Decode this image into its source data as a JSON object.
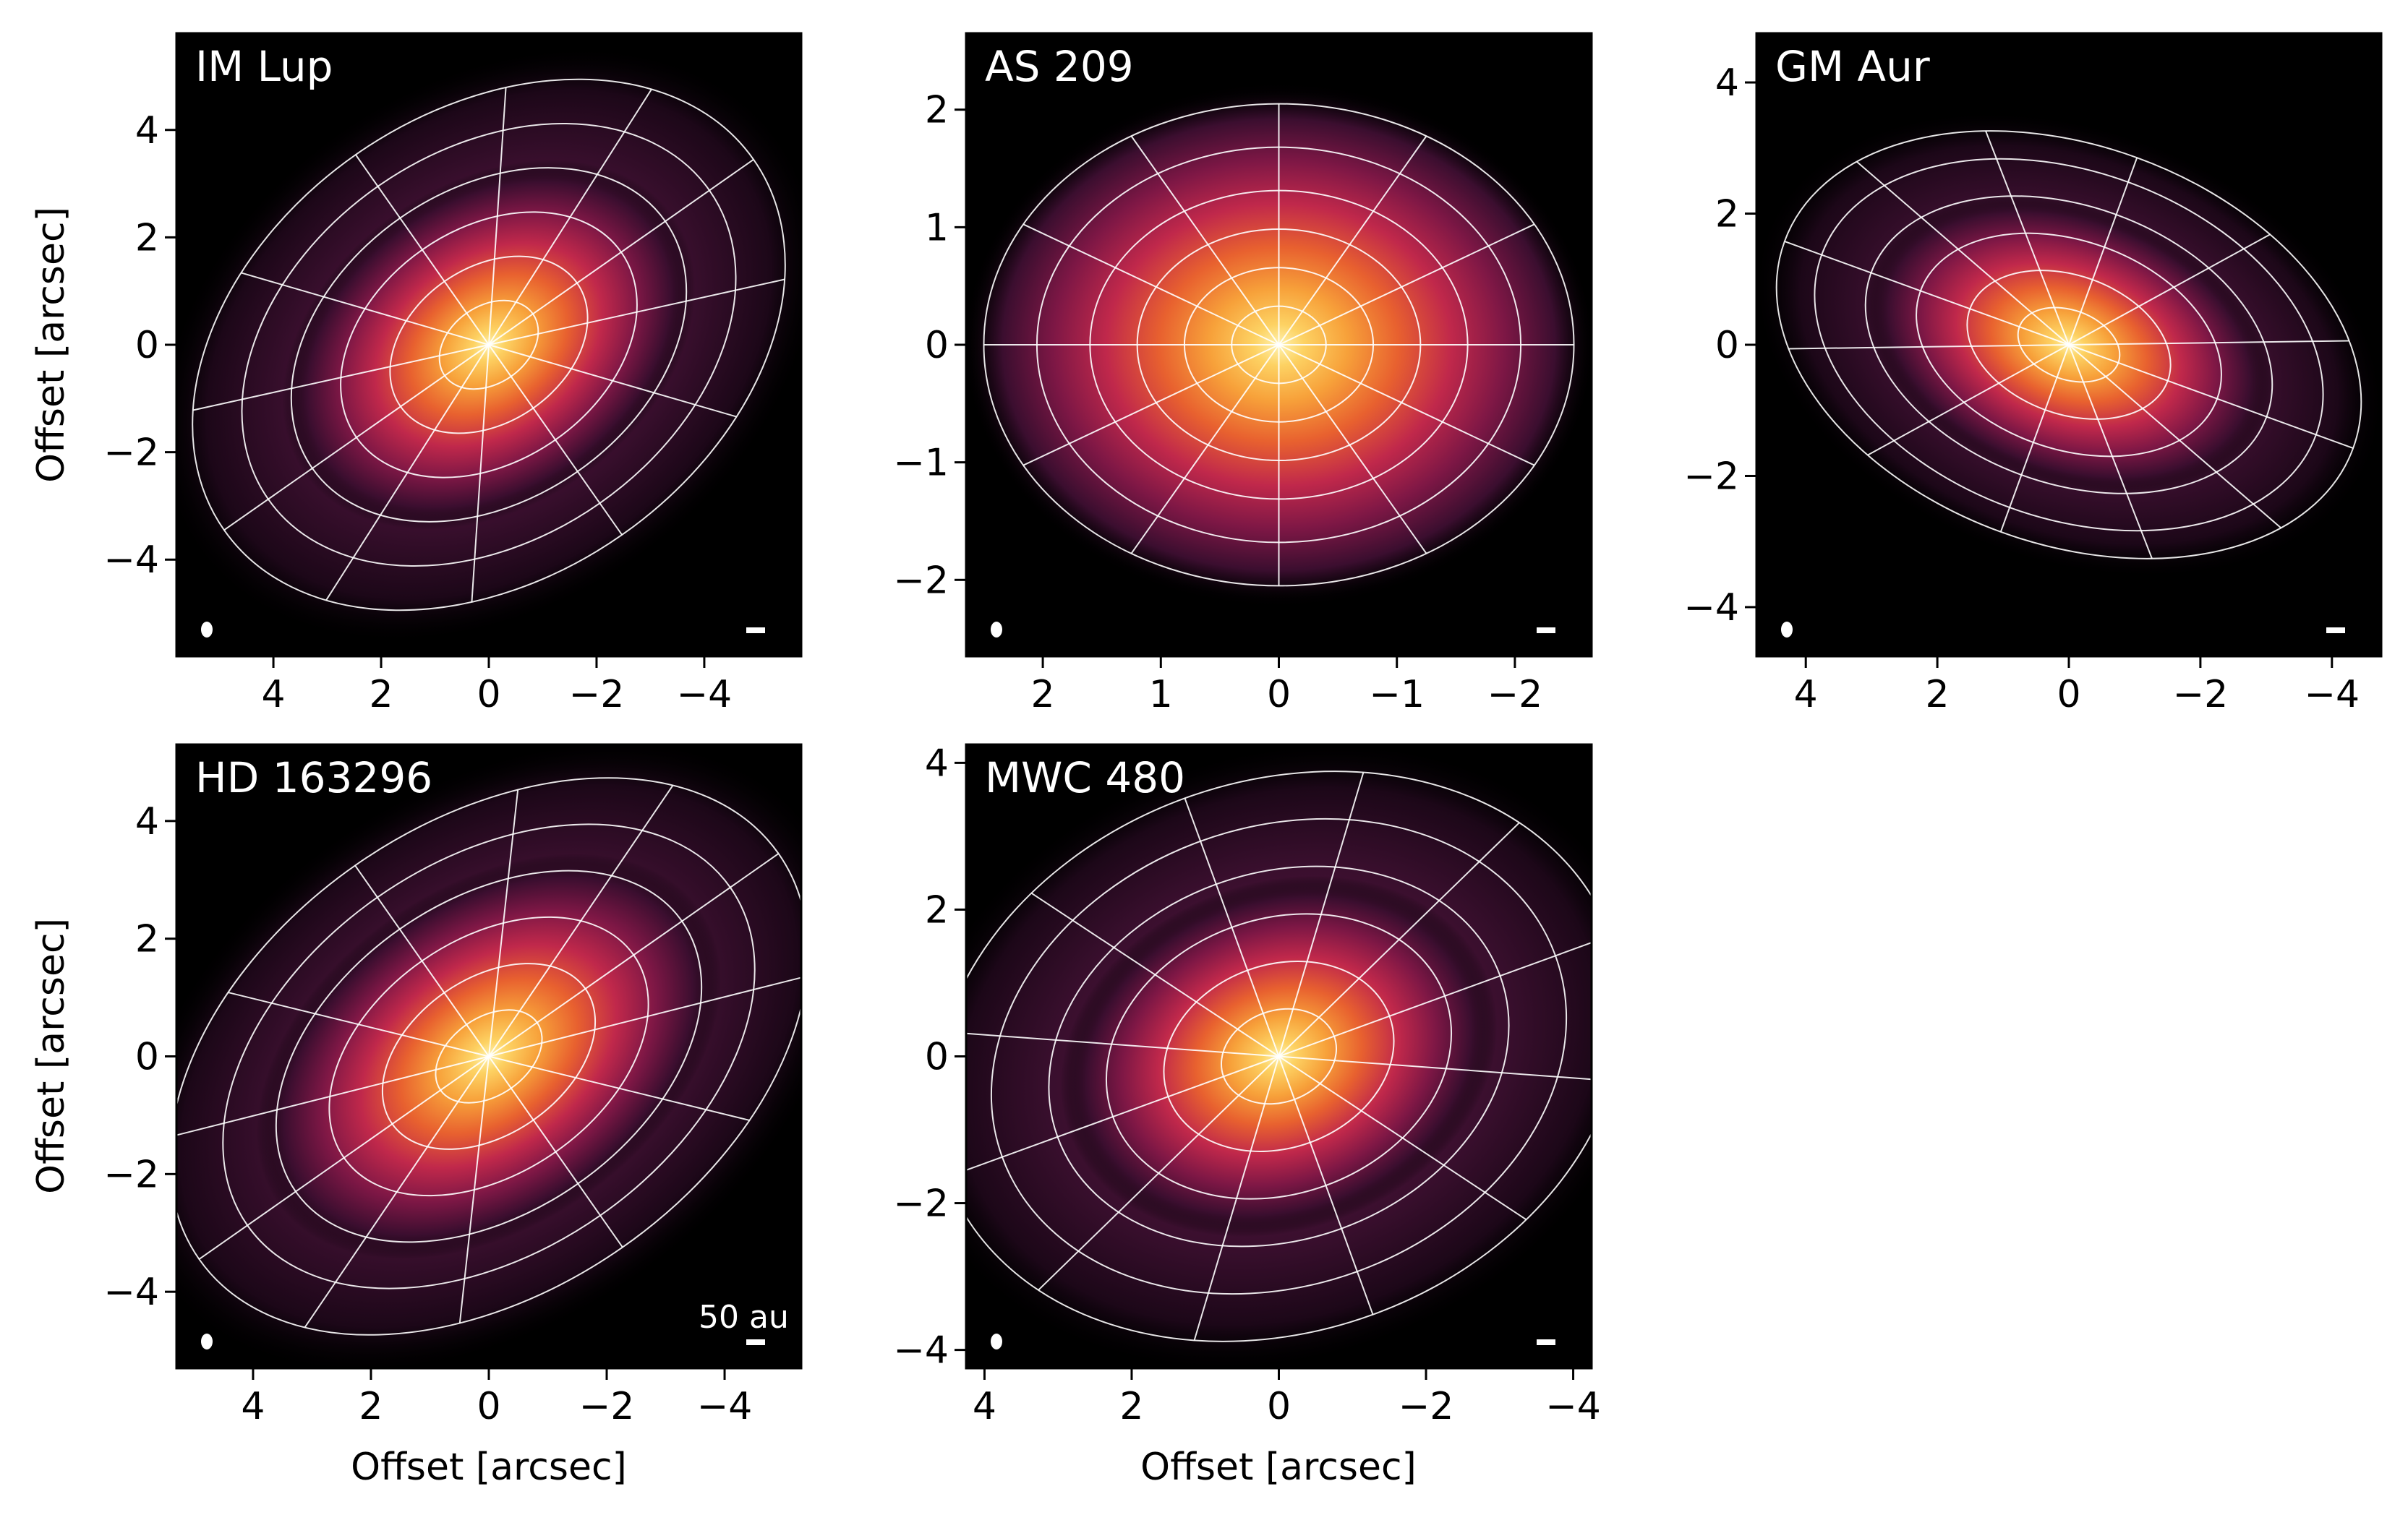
{
  "figure": {
    "xlabel": "Offset [arcsec]",
    "ylabel": "Offset [arcsec]",
    "scalebar_label": "50 au"
  },
  "colors": {
    "background": "#000000",
    "axes_frame": "#000000",
    "grid_lines": "#ffffff",
    "label_text": "#ffffff",
    "colormap": [
      "#000000",
      "#2a0a1f",
      "#5e1340",
      "#8e1a4c",
      "#c2284a",
      "#e8532f",
      "#f4822a",
      "#fbb23a",
      "#fde58a"
    ]
  },
  "chart_data": [
    {
      "type": "heatmap",
      "title": "IM Lup",
      "xlabel": "",
      "ylabel": "Offset [arcsec]",
      "xlim": [
        5.8,
        -5.8
      ],
      "ylim": [
        -5.8,
        5.8
      ],
      "xticks": [
        4,
        2,
        0,
        -2,
        -4
      ],
      "yticks": [
        4,
        2,
        0,
        -2,
        -4
      ],
      "xticklabels": [
        "4",
        "2",
        "0",
        "−2",
        "−4"
      ],
      "yticklabels": [
        "4",
        "2",
        "0",
        "−2",
        "−4"
      ],
      "disk": {
        "rings": [
          1,
          2,
          3,
          4,
          5,
          6
        ],
        "outer_extent": 6.2,
        "axis_ratio": 0.72,
        "position_angle_deg": 35,
        "spokes": 12,
        "bright_extent": 2.2
      }
    },
    {
      "type": "heatmap",
      "title": "AS 209",
      "xlabel": "",
      "ylabel": "",
      "xlim": [
        2.65,
        -2.65
      ],
      "ylim": [
        -2.65,
        2.65
      ],
      "xticks": [
        2,
        1,
        0,
        -1,
        -2
      ],
      "yticks": [
        2,
        1,
        0,
        -1,
        -2
      ],
      "xticklabels": [
        "2",
        "1",
        "0",
        "−1",
        "−2"
      ],
      "yticklabels": [
        "2",
        "1",
        "0",
        "−1",
        "−2"
      ],
      "disk": {
        "rings": [
          0.4,
          0.8,
          1.2,
          1.6,
          2.05,
          2.5
        ],
        "outer_extent": 2.5,
        "axis_ratio": 0.82,
        "position_angle_deg": 0,
        "spokes": 12,
        "bright_extent": 1.4
      }
    },
    {
      "type": "heatmap",
      "title": "GM Aur",
      "xlabel": "",
      "ylabel": "",
      "xlim": [
        4.75,
        -4.75
      ],
      "ylim": [
        -4.75,
        4.75
      ],
      "xticks": [
        4,
        2,
        0,
        -2,
        -4
      ],
      "yticks": [
        4,
        2,
        0,
        -2,
        -4
      ],
      "xticklabels": [
        "4",
        "2",
        "0",
        "−2",
        "−4"
      ],
      "yticklabels": [
        "4",
        "2",
        "0",
        "−2",
        "−4"
      ],
      "disk": {
        "rings": [
          0.8,
          1.6,
          2.4,
          3.2,
          4.0,
          4.6
        ],
        "outer_extent": 4.6,
        "axis_ratio": 0.66,
        "position_angle_deg": -20,
        "spokes": 12,
        "bright_extent": 1.7
      }
    },
    {
      "type": "heatmap",
      "title": "HD 163296",
      "xlabel": "Offset [arcsec]",
      "ylabel": "Offset [arcsec]",
      "xlim": [
        5.3,
        -5.3
      ],
      "ylim": [
        -5.3,
        5.3
      ],
      "xticks": [
        4,
        2,
        0,
        -2,
        -4
      ],
      "yticks": [
        4,
        2,
        0,
        -2,
        -4
      ],
      "xticklabels": [
        "4",
        "2",
        "0",
        "−2",
        "−4"
      ],
      "yticklabels": [
        "4",
        "2",
        "0",
        "−2",
        "−4"
      ],
      "disk": {
        "rings": [
          1,
          2,
          3,
          4,
          5,
          6
        ],
        "outer_extent": 6.3,
        "axis_ratio": 0.66,
        "position_angle_deg": 35,
        "spokes": 12,
        "bright_extent": 2.3
      },
      "annotation": "50 au"
    },
    {
      "type": "heatmap",
      "title": "MWC 480",
      "xlabel": "Offset [arcsec]",
      "ylabel": "",
      "xlim": [
        4.25,
        -4.25
      ],
      "ylim": [
        -4.25,
        4.25
      ],
      "xticks": [
        4,
        2,
        0,
        -2,
        -4
      ],
      "yticks": [
        4,
        2,
        0,
        -2,
        -4
      ],
      "xticklabels": [
        "4",
        "2",
        "0",
        "−2",
        "−4"
      ],
      "yticklabels": [
        "4",
        "2",
        "0",
        "−2",
        "−4"
      ],
      "disk": {
        "rings": [
          0.8,
          1.6,
          2.4,
          3.2,
          4.0,
          4.8
        ],
        "outer_extent": 4.85,
        "axis_ratio": 0.78,
        "position_angle_deg": 20,
        "spokes": 12,
        "bright_extent": 1.6
      }
    }
  ]
}
